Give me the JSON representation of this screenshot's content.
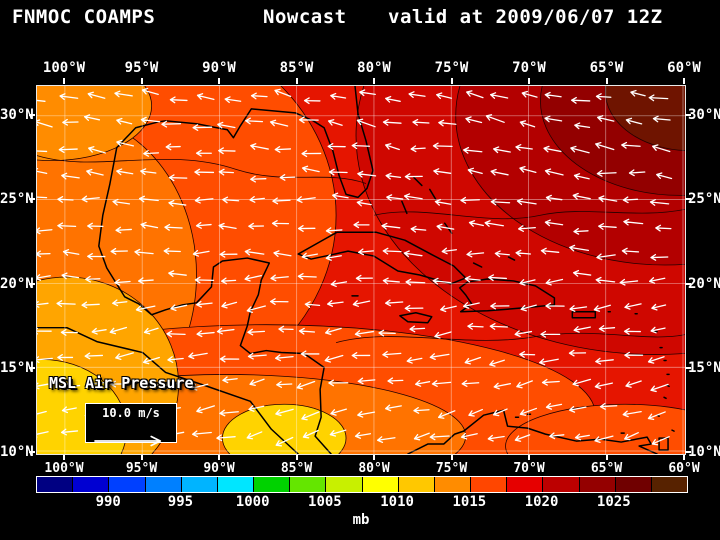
{
  "header": {
    "model": "FNMOC COAMPS",
    "product": "Nowcast",
    "valid_text": "valid at 2009/06/07 12Z"
  },
  "map": {
    "overlay_label": "MSL Air Pressure",
    "wind_scale": {
      "label": "10.0 m/s"
    },
    "axes": {
      "lon_labels": [
        "100°W",
        "95°W",
        "90°W",
        "85°W",
        "80°W",
        "75°W",
        "70°W",
        "65°W",
        "60°W"
      ],
      "lat_labels": [
        "30°N",
        "25°N",
        "20°N",
        "15°N",
        "10°N"
      ]
    }
  },
  "colorbar": {
    "unit": "mb",
    "min": 985,
    "max": 1030,
    "tick_labels": [
      "990",
      "995",
      "1000",
      "1005",
      "1010",
      "1015",
      "1020",
      "1025"
    ],
    "colors": [
      "#000082",
      "#0000d2",
      "#0040ff",
      "#0080ff",
      "#00b4ff",
      "#00e6ff",
      "#00d200",
      "#64e600",
      "#c8f000",
      "#ffff00",
      "#ffc800",
      "#ff8c00",
      "#ff4600",
      "#e60000",
      "#bc0000",
      "#940000",
      "#700000",
      "#572200"
    ]
  }
}
